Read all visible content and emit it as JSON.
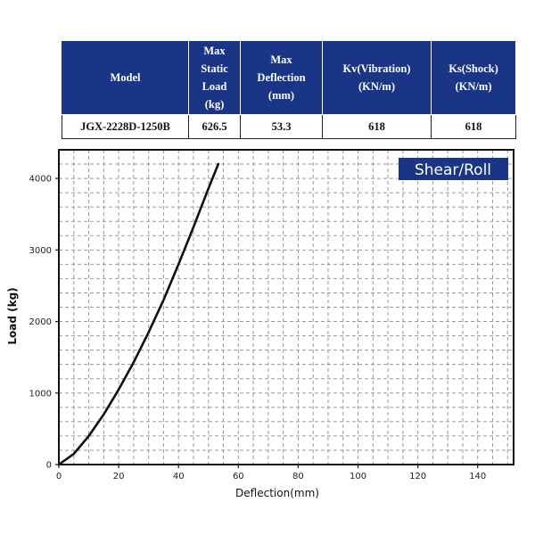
{
  "spec_table": {
    "headers": [
      [
        "Model"
      ],
      [
        "Max",
        "Static",
        "Load",
        "(kg)"
      ],
      [
        "Max",
        "Deflection",
        "(mm)"
      ],
      [
        "Kv(Vibration)",
        "(KN/m)"
      ],
      [
        "Ks(Shock)",
        "(KN/m)"
      ]
    ],
    "row": [
      "JGX-2228D-1250B",
      "626.5",
      "53.3",
      "618",
      "618"
    ]
  },
  "colors": {
    "header_bg": "#1b3586",
    "badge_bg": "#1b3586",
    "curve": "#111111"
  },
  "chart_data": {
    "type": "line",
    "title": "",
    "badge": "Shear/Roll",
    "xlabel": "Deflection(mm)",
    "ylabel": "Load (kg)",
    "xlim": [
      0,
      152
    ],
    "ylim": [
      0,
      4400
    ],
    "xticks": [
      0,
      20,
      40,
      60,
      80,
      100,
      120,
      140
    ],
    "yticks": [
      0,
      1000,
      2000,
      3000,
      4000
    ],
    "grid": true,
    "series": [
      {
        "x": [
          0,
          5,
          10,
          15,
          20,
          25,
          30,
          35,
          40,
          45,
          50,
          53.3
        ],
        "y": [
          0,
          150,
          400,
          700,
          1050,
          1430,
          1850,
          2300,
          2800,
          3320,
          3860,
          4200
        ]
      }
    ]
  }
}
